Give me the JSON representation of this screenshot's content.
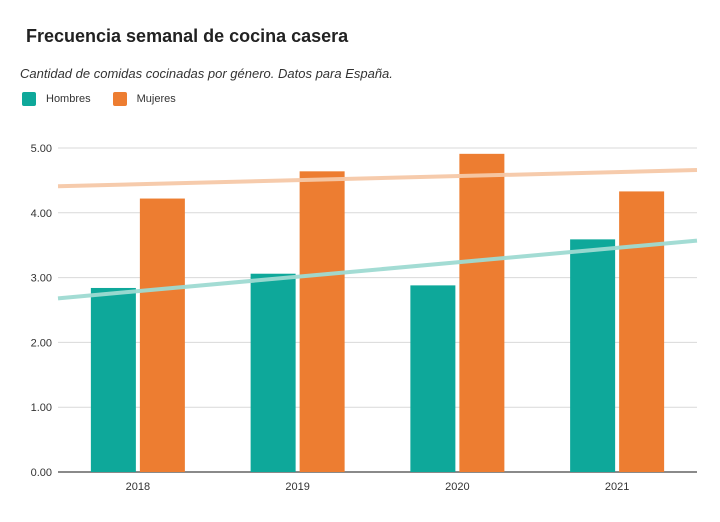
{
  "chart_data": {
    "type": "bar",
    "title": "Frecuencia semanal de cocina casera",
    "subtitle": "Cantidad de comidas cocinadas por género. Datos para España.",
    "xlabel": "",
    "ylabel": "",
    "categories": [
      "2018",
      "2019",
      "2020",
      "2021"
    ],
    "series": [
      {
        "name": "Hombres",
        "color": "#0ea89a",
        "values": [
          2.84,
          3.06,
          2.88,
          3.59
        ]
      },
      {
        "name": "Mujeres",
        "color": "#ed7d31",
        "values": [
          4.22,
          4.64,
          4.91,
          4.33
        ]
      }
    ],
    "trendlines": [
      {
        "series": "Hombres",
        "color": "#9fdbd2",
        "start": 2.68,
        "end": 3.57
      },
      {
        "series": "Mujeres",
        "color": "#f6c9a8",
        "start": 4.41,
        "end": 4.66
      }
    ],
    "ylim": [
      0,
      5
    ],
    "yticks": [
      "0.00",
      "1.00",
      "2.00",
      "3.00",
      "4.00",
      "5.00"
    ],
    "grid": true,
    "legend_position": "top-left"
  }
}
